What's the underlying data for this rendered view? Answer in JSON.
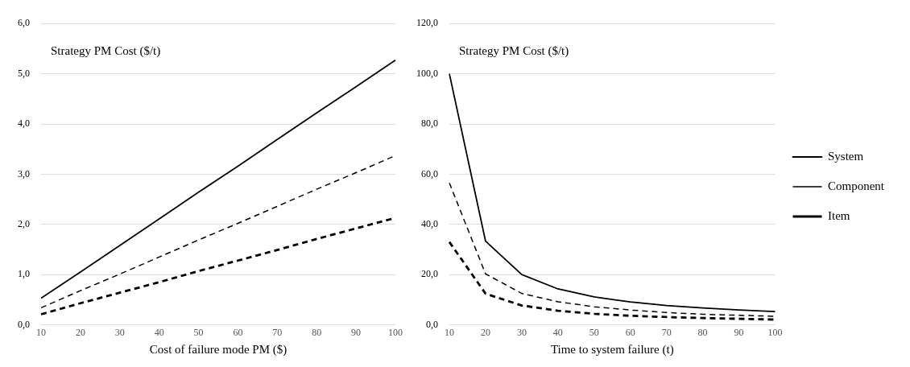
{
  "chart_data": [
    {
      "type": "line",
      "ylabel": "Strategy PM Cost ($/t)",
      "xlabel": "Cost of failure mode PM ($)",
      "categories": [
        "10",
        "20",
        "30",
        "40",
        "50",
        "60",
        "70",
        "80",
        "90",
        "100"
      ],
      "series": [
        {
          "color": "#000000",
          "line_style": "solid",
          "values": [
            0.53,
            1.05,
            1.58,
            2.11,
            2.64,
            3.16,
            3.69,
            4.22,
            4.74,
            5.27
          ]
        },
        {
          "color": "#000000",
          "line_style": "dashed",
          "values": [
            0.34,
            0.68,
            1.01,
            1.35,
            1.69,
            2.02,
            2.36,
            2.7,
            3.03,
            3.37
          ]
        },
        {
          "color": "#000000",
          "line_style": "dashed",
          "values": [
            0.21,
            0.43,
            0.64,
            0.85,
            1.07,
            1.28,
            1.49,
            1.71,
            1.92,
            2.13
          ]
        }
      ],
      "ylim": [
        0,
        6
      ],
      "yticks": [
        {
          "value": 0,
          "label": "0,0"
        },
        {
          "value": 1,
          "label": "1,0"
        },
        {
          "value": 2,
          "label": "2,0"
        },
        {
          "value": 3,
          "label": "3,0"
        },
        {
          "value": 4,
          "label": "4,0"
        },
        {
          "value": 5,
          "label": "5,0"
        },
        {
          "value": 6,
          "label": "6,0"
        }
      ],
      "grid": "y",
      "legend": false,
      "marker": "none"
    },
    {
      "type": "line",
      "ylabel": "Strategy PM Cost ($/t)",
      "xlabel": "Time to system failure (t)",
      "categories": [
        "10",
        "20",
        "30",
        "40",
        "50",
        "60",
        "70",
        "80",
        "90",
        "100"
      ],
      "series": [
        {
          "name": "System",
          "color": "#000000",
          "line_style": "solid",
          "values": [
            100,
            33.3,
            20,
            14.3,
            11.1,
            9.1,
            7.7,
            6.7,
            5.9,
            5.3
          ]
        },
        {
          "name": "Component",
          "color": "#000000",
          "line_style": "dashed",
          "values": [
            56.5,
            20.3,
            12.5,
            9.2,
            7.2,
            5.9,
            4.9,
            4.2,
            3.8,
            3.4
          ]
        },
        {
          "name": "Item",
          "color": "#000000",
          "line_style": "dashed",
          "values": [
            33,
            12.4,
            7.7,
            5.6,
            4.4,
            3.6,
            3.1,
            2.7,
            2.4,
            2.1
          ]
        }
      ],
      "ylim": [
        0,
        120
      ],
      "yticks": [
        {
          "value": 0,
          "label": "0,0"
        },
        {
          "value": 20,
          "label": "20,0"
        },
        {
          "value": 40,
          "label": "40,0"
        },
        {
          "value": 60,
          "label": "60,0"
        },
        {
          "value": 80,
          "label": "80,0"
        },
        {
          "value": 100,
          "label": "100,0"
        },
        {
          "value": 120,
          "label": "120,0"
        }
      ],
      "grid": "y",
      "legend": "right",
      "marker": "none"
    }
  ]
}
